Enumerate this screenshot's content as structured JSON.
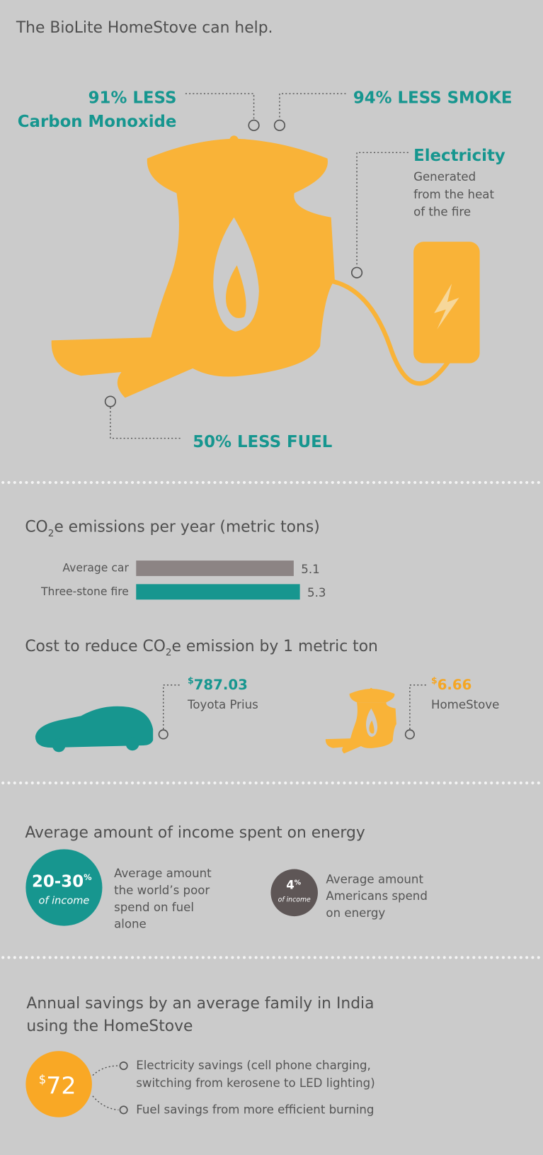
{
  "header": {
    "title": "The BioLite HomeStove can help."
  },
  "stove": {
    "co": [
      "91% LESS",
      "Carbon Monoxide"
    ],
    "smoke": "94% LESS SMOKE",
    "electricity": {
      "title": "Electricity",
      "lines": [
        "Generated",
        "from the heat",
        "of the fire"
      ]
    },
    "fuel": "50% LESS FUEL"
  },
  "chart_data": {
    "type": "bar",
    "orientation": "horizontal",
    "title": [
      "CO",
      "2",
      "e emissions per year (metric tons)"
    ],
    "categories": [
      "Average car",
      "Three-stone fire"
    ],
    "values": [
      5.1,
      5.3
    ],
    "colors": [
      "#8c8484",
      "#17968f"
    ]
  },
  "cost": {
    "title": [
      "Cost to reduce CO",
      "2",
      "e emission by 1 metric ton"
    ],
    "items": [
      {
        "currency": "$",
        "amount": "787.03",
        "label": "Toyota Prius"
      },
      {
        "currency": "$",
        "amount": "6.66",
        "label": "HomeStove"
      }
    ]
  },
  "income": {
    "title": "Average amount of income spent on energy",
    "items": [
      {
        "value": "20-30",
        "unit": "%",
        "sub": "of income",
        "text": [
          "Average amount",
          "the world’s poor",
          "spend on fuel",
          "alone"
        ]
      },
      {
        "value": "4",
        "unit": "%",
        "sub": "of income",
        "text": [
          "Average amount",
          "Americans spend",
          "on energy"
        ]
      }
    ]
  },
  "savings": {
    "title": [
      "Annual savings by an average family in India",
      "using the HomeStove"
    ],
    "currency": "$",
    "amount": "72",
    "items": [
      [
        "Electricity savings (cell phone charging,",
        "switching from kerosene to LED lighting)"
      ],
      [
        "Fuel savings from more efficient burning"
      ]
    ]
  }
}
